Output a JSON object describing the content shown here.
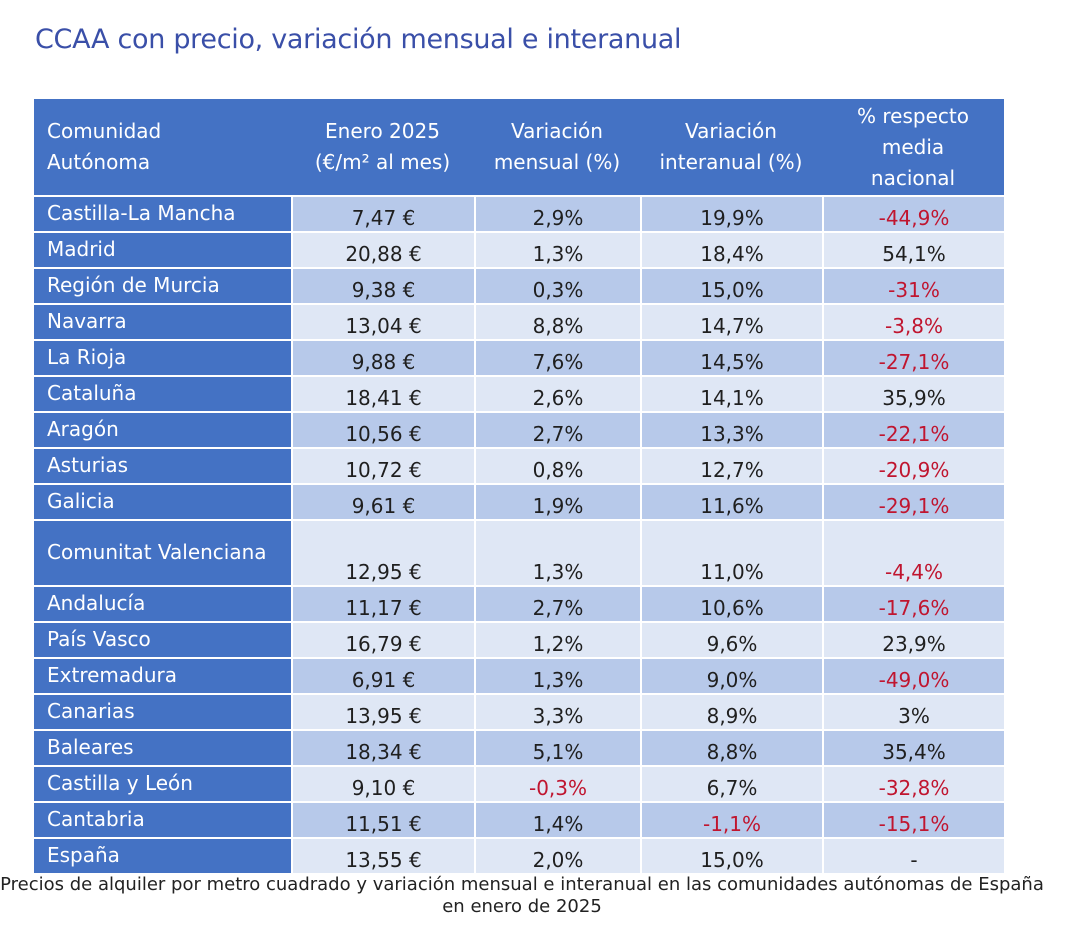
{
  "title": "CCAA con precio, variación mensual e interanual",
  "table": {
    "headers": [
      [
        "Comunidad",
        "Autónoma"
      ],
      [
        "Enero 2025",
        "(€/m² al mes)"
      ],
      [
        "Variación",
        "mensual (%)"
      ],
      [
        "Variación",
        "interanual (%)"
      ],
      [
        "% respecto",
        "media",
        "nacional"
      ]
    ],
    "rows": [
      {
        "name": "Castilla-La Mancha",
        "price": "7,47 €",
        "monthly": "2,9%",
        "annual": "19,9%",
        "vs_national": "-44,9%"
      },
      {
        "name": "Madrid",
        "price": "20,88 €",
        "monthly": "1,3%",
        "annual": "18,4%",
        "vs_national": "54,1%"
      },
      {
        "name": "Región de Murcia",
        "price": "9,38 €",
        "monthly": "0,3%",
        "annual": "15,0%",
        "vs_national": "-31%"
      },
      {
        "name": "Navarra",
        "price": "13,04 €",
        "monthly": "8,8%",
        "annual": "14,7%",
        "vs_national": "-3,8%"
      },
      {
        "name": "La Rioja",
        "price": "9,88 €",
        "monthly": "7,6%",
        "annual": "14,5%",
        "vs_national": "-27,1%"
      },
      {
        "name": "Cataluña",
        "price": "18,41 €",
        "monthly": "2,6%",
        "annual": "14,1%",
        "vs_national": "35,9%"
      },
      {
        "name": "Aragón",
        "price": "10,56 €",
        "monthly": "2,7%",
        "annual": "13,3%",
        "vs_national": "-22,1%"
      },
      {
        "name": "Asturias",
        "price": "10,72 €",
        "monthly": "0,8%",
        "annual": "12,7%",
        "vs_national": "-20,9%"
      },
      {
        "name": "Galicia",
        "price": "9,61 €",
        "monthly": "1,9%",
        "annual": "11,6%",
        "vs_national": "-29,1%"
      },
      {
        "name": "Comunitat Valenciana",
        "price": "12,95 €",
        "monthly": "1,3%",
        "annual": "11,0%",
        "vs_national": "-4,4%",
        "tall": true
      },
      {
        "name": "Andalucía",
        "price": "11,17 €",
        "monthly": "2,7%",
        "annual": "10,6%",
        "vs_national": "-17,6%"
      },
      {
        "name": "País Vasco",
        "price": "16,79 €",
        "monthly": "1,2%",
        "annual": "9,6%",
        "vs_national": "23,9%"
      },
      {
        "name": "Extremadura",
        "price": "6,91 €",
        "monthly": "1,3%",
        "annual": "9,0%",
        "vs_national": "-49,0%"
      },
      {
        "name": "Canarias",
        "price": "13,95 €",
        "monthly": "3,3%",
        "annual": "8,9%",
        "vs_national": "3%"
      },
      {
        "name": "Baleares",
        "price": "18,34 €",
        "monthly": "5,1%",
        "annual": "8,8%",
        "vs_national": "35,4%"
      },
      {
        "name": "Castilla y León",
        "price": "9,10 €",
        "monthly": "-0,3%",
        "annual": "6,7%",
        "vs_national": "-32,8%"
      },
      {
        "name": "Cantabria",
        "price": "11,51 €",
        "monthly": "1,4%",
        "annual": "-1,1%",
        "vs_national": "-15,1%"
      },
      {
        "name": "España",
        "price": "13,55 €",
        "monthly": "2,0%",
        "annual": "15,0%",
        "vs_national": "-"
      }
    ]
  },
  "caption": "Precios de alquiler por metro cuadrado y variación mensual e interanual en las comunidades autónomas de España en enero de 2025",
  "colors": {
    "header_blue": "#4472c4",
    "title_blue": "#3a4fa8",
    "row_dark": "#b7c9ea",
    "row_light": "#dfe7f5",
    "negative_red": "#c0152f"
  }
}
